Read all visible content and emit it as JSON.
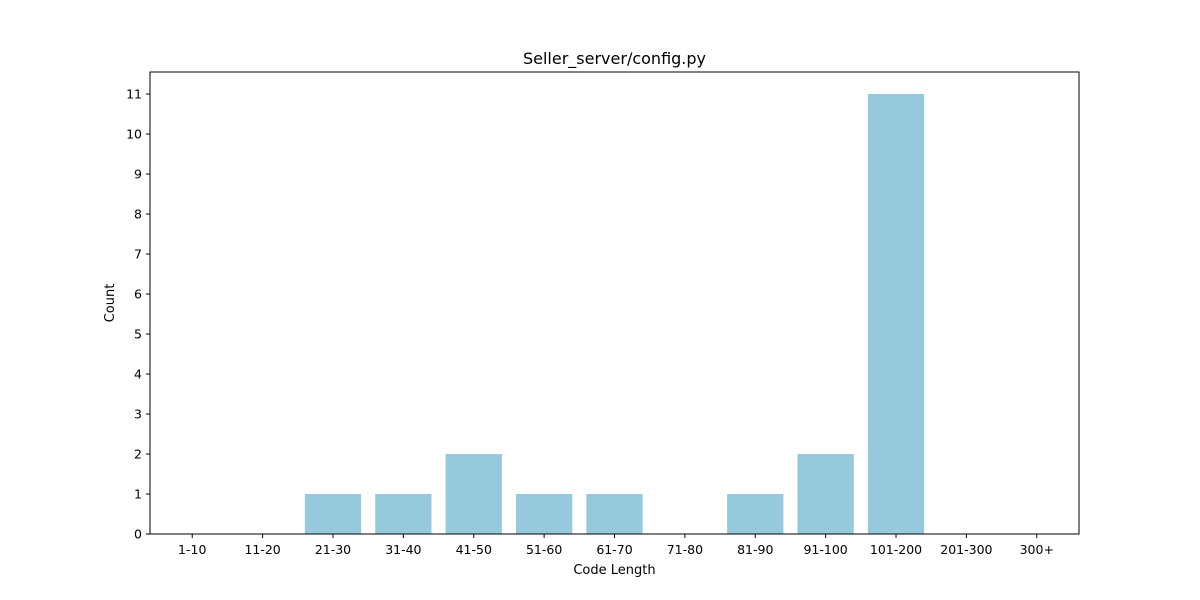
{
  "chart_data": {
    "type": "bar",
    "title": "Seller_server/config.py",
    "xlabel": "Code Length",
    "ylabel": "Count",
    "categories": [
      "1-10",
      "11-20",
      "21-30",
      "31-40",
      "41-50",
      "51-60",
      "61-70",
      "71-80",
      "81-90",
      "91-100",
      "101-200",
      "201-300",
      "300+"
    ],
    "values": [
      0,
      0,
      1,
      1,
      2,
      1,
      1,
      0,
      1,
      2,
      11,
      0,
      0
    ],
    "ylim": [
      0,
      11.55
    ],
    "yticks": [
      0,
      1,
      2,
      3,
      4,
      5,
      6,
      7,
      8,
      9,
      10,
      11
    ],
    "bar_color": "#96c9dc",
    "grid": false,
    "legend": "none"
  }
}
